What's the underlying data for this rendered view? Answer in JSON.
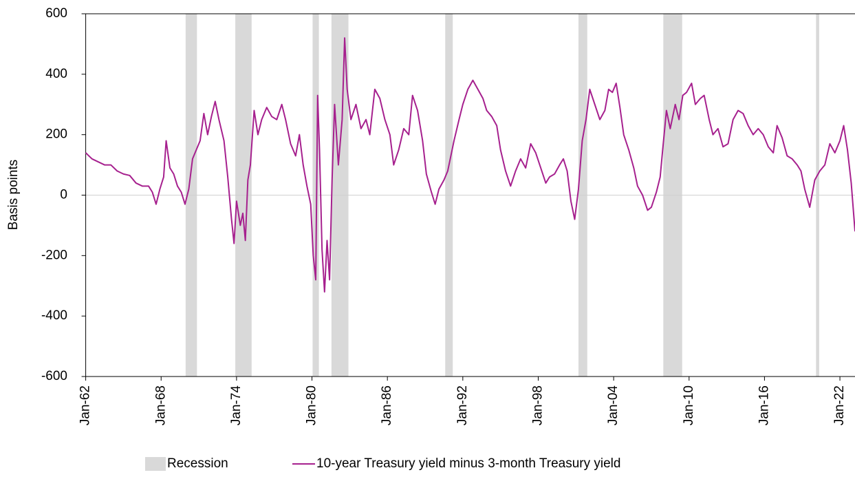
{
  "chart_data": {
    "type": "line",
    "y_label": "Basis points",
    "ylim": [
      -600,
      600
    ],
    "yticks": [
      -600,
      -400,
      -200,
      0,
      200,
      400,
      600
    ],
    "xlim": [
      1962,
      2023.2
    ],
    "xticks": [
      {
        "value": 1962,
        "label": "Jan-62"
      },
      {
        "value": 1968,
        "label": "Jan-68"
      },
      {
        "value": 1974,
        "label": "Jan-74"
      },
      {
        "value": 1980,
        "label": "Jan-80"
      },
      {
        "value": 1986,
        "label": "Jan-86"
      },
      {
        "value": 1992,
        "label": "Jan-92"
      },
      {
        "value": 1998,
        "label": "Jan-98"
      },
      {
        "value": 2004,
        "label": "Jan-04"
      },
      {
        "value": 2010,
        "label": "Jan-10"
      },
      {
        "value": 2016,
        "label": "Jan-16"
      },
      {
        "value": 2022,
        "label": "Jan-22"
      }
    ],
    "grid": false,
    "shaded_regions": {
      "name": "Recession",
      "color": "#d9d9d9",
      "ranges": [
        [
          1969.95,
          1970.85
        ],
        [
          1973.9,
          1975.2
        ],
        [
          1980.05,
          1980.55
        ],
        [
          1981.55,
          1982.9
        ],
        [
          1990.6,
          1991.2
        ],
        [
          2001.2,
          2001.9
        ],
        [
          2007.95,
          2009.45
        ],
        [
          2020.1,
          2020.35
        ]
      ]
    },
    "x": [
      1962,
      1962.5,
      1963,
      1963.5,
      1964,
      1964.5,
      1965,
      1965.5,
      1966,
      1966.5,
      1967,
      1967.3,
      1967.6,
      1967.9,
      1968.2,
      1968.4,
      1968.7,
      1969,
      1969.3,
      1969.6,
      1969.9,
      1970.2,
      1970.5,
      1970.8,
      1971.1,
      1971.4,
      1971.7,
      1972,
      1972.3,
      1972.6,
      1973,
      1973.3,
      1973.6,
      1973.8,
      1974,
      1974.3,
      1974.5,
      1974.7,
      1974.9,
      1975.1,
      1975.4,
      1975.7,
      1976,
      1976.4,
      1976.8,
      1977.2,
      1977.6,
      1977.9,
      1978.3,
      1978.7,
      1979,
      1979.3,
      1979.6,
      1979.9,
      1980.1,
      1980.3,
      1980.45,
      1980.6,
      1980.8,
      1981,
      1981.2,
      1981.4,
      1981.6,
      1981.8,
      1982.1,
      1982.4,
      1982.6,
      1982.8,
      1983.1,
      1983.5,
      1983.9,
      1984.3,
      1984.6,
      1985,
      1985.4,
      1985.8,
      1986.2,
      1986.5,
      1986.9,
      1987.3,
      1987.7,
      1988,
      1988.4,
      1988.8,
      1989.1,
      1989.5,
      1989.8,
      1990.1,
      1990.5,
      1990.8,
      1991,
      1991.3,
      1991.7,
      1992,
      1992.4,
      1992.8,
      1993.2,
      1993.6,
      1993.9,
      1994.3,
      1994.7,
      1995,
      1995.4,
      1995.8,
      1996.2,
      1996.6,
      1997,
      1997.4,
      1997.8,
      1998.2,
      1998.6,
      1998.9,
      1999.3,
      1999.7,
      2000,
      2000.3,
      2000.6,
      2000.9,
      2001.2,
      2001.5,
      2001.8,
      2002.1,
      2002.5,
      2002.9,
      2003.3,
      2003.6,
      2003.9,
      2004.2,
      2004.5,
      2004.8,
      2005.2,
      2005.6,
      2005.9,
      2006.3,
      2006.7,
      2007,
      2007.4,
      2007.7,
      2007.9,
      2008.2,
      2008.5,
      2008.9,
      2009.2,
      2009.5,
      2009.8,
      2010.2,
      2010.5,
      2010.9,
      2011.2,
      2011.6,
      2011.9,
      2012.3,
      2012.7,
      2013.1,
      2013.5,
      2013.9,
      2014.3,
      2014.7,
      2015.1,
      2015.5,
      2015.9,
      2016.3,
      2016.7,
      2017,
      2017.4,
      2017.8,
      2018.2,
      2018.6,
      2018.9,
      2019.2,
      2019.6,
      2020,
      2020.4,
      2020.8,
      2021.2,
      2021.6,
      2022,
      2022.3,
      2022.6,
      2022.9,
      2023.2
    ],
    "series": [
      {
        "name": "10-year Treasury yield minus 3-month Treasury yield",
        "color": "#a6208e",
        "values": [
          140,
          120,
          110,
          100,
          100,
          80,
          70,
          65,
          40,
          30,
          30,
          10,
          -30,
          20,
          60,
          180,
          90,
          70,
          30,
          10,
          -30,
          20,
          120,
          150,
          180,
          270,
          200,
          260,
          310,
          250,
          180,
          60,
          -80,
          -160,
          -20,
          -100,
          -60,
          -150,
          50,
          100,
          280,
          200,
          250,
          290,
          260,
          250,
          300,
          250,
          170,
          130,
          200,
          100,
          30,
          -30,
          -200,
          -280,
          330,
          150,
          -180,
          -320,
          -150,
          -280,
          50,
          300,
          100,
          250,
          520,
          350,
          250,
          300,
          220,
          250,
          200,
          350,
          320,
          250,
          200,
          100,
          150,
          220,
          200,
          330,
          280,
          180,
          70,
          10,
          -30,
          20,
          50,
          80,
          120,
          180,
          250,
          300,
          350,
          380,
          350,
          320,
          280,
          260,
          230,
          150,
          80,
          30,
          80,
          120,
          90,
          170,
          140,
          90,
          40,
          60,
          70,
          100,
          120,
          80,
          -20,
          -80,
          20,
          180,
          250,
          350,
          300,
          250,
          280,
          350,
          340,
          370,
          290,
          200,
          150,
          90,
          30,
          0,
          -50,
          -40,
          10,
          60,
          150,
          280,
          220,
          300,
          250,
          330,
          340,
          370,
          300,
          320,
          330,
          250,
          200,
          220,
          160,
          170,
          250,
          280,
          270,
          230,
          200,
          220,
          200,
          160,
          140,
          230,
          190,
          130,
          120,
          100,
          80,
          20,
          -40,
          50,
          80,
          100,
          170,
          140,
          180,
          230,
          150,
          40,
          -120
        ]
      }
    ]
  }
}
